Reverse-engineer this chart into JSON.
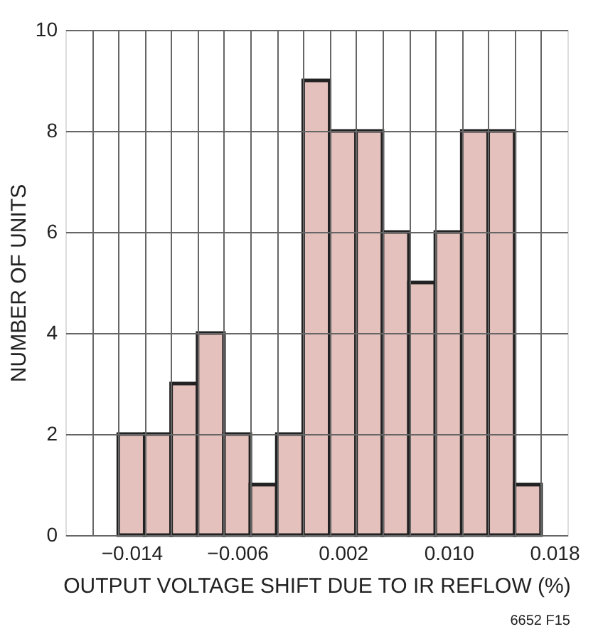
{
  "chart_data": {
    "type": "histogram",
    "xlabel": "OUTPUT VOLTAGE SHIFT DUE TO IR REFLOW (%)",
    "ylabel": "NUMBER OF UNITS",
    "annotations": [
      "6652 F15"
    ],
    "bins": [
      -0.015,
      -0.013,
      -0.011,
      -0.009,
      -0.007,
      -0.005,
      -0.003,
      -0.001,
      0.001,
      0.003,
      0.005,
      0.007,
      0.009,
      0.011,
      0.013,
      0.015,
      0.017
    ],
    "values": [
      2,
      2,
      3,
      4,
      2,
      1,
      2,
      9,
      8,
      8,
      6,
      5,
      6,
      8,
      8,
      1
    ],
    "color": "#e5c1bd",
    "xlim": [
      -0.019,
      0.019
    ],
    "xticks": [
      {
        "value": -0.014,
        "label": "−0.014"
      },
      {
        "value": -0.006,
        "label": "−0.006"
      },
      {
        "value": 0.002,
        "label": "0.002"
      },
      {
        "value": 0.01,
        "label": "0.010"
      },
      {
        "value": 0.018,
        "label": "0.018"
      },
      {
        "value": -0.017,
        "label": null
      },
      {
        "value": -0.015,
        "label": null
      },
      {
        "value": -0.013,
        "label": null
      },
      {
        "value": -0.011,
        "label": null
      },
      {
        "value": -0.009,
        "label": null
      },
      {
        "value": -0.007,
        "label": null
      },
      {
        "value": -0.005,
        "label": null
      },
      {
        "value": -0.003,
        "label": null
      },
      {
        "value": -0.001,
        "label": null
      },
      {
        "value": 0.001,
        "label": null
      },
      {
        "value": 0.003,
        "label": null
      },
      {
        "value": 0.005,
        "label": null
      },
      {
        "value": 0.007,
        "label": null
      },
      {
        "value": 0.009,
        "label": null
      },
      {
        "value": 0.011,
        "label": null
      },
      {
        "value": 0.013,
        "label": null
      },
      {
        "value": 0.015,
        "label": null
      },
      {
        "value": 0.017,
        "label": null
      }
    ],
    "ylim": [
      0,
      10
    ],
    "yticks": [
      0,
      2,
      4,
      6,
      8,
      10
    ],
    "grid": true
  }
}
